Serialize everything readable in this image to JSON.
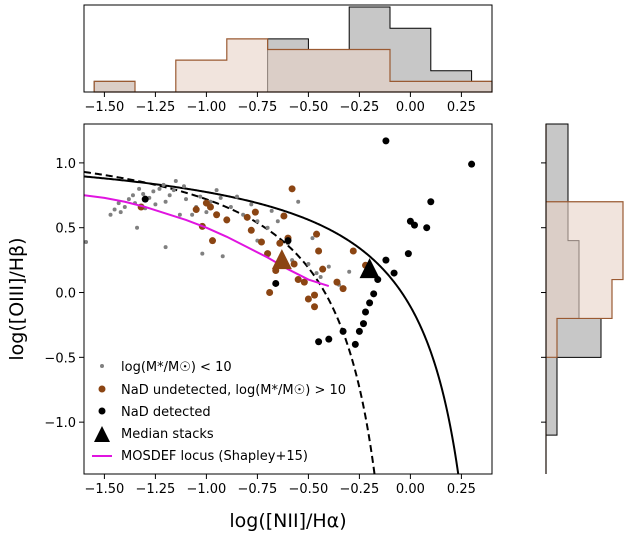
{
  "colors": {
    "low_mass": "#808080",
    "undetected": "#8B4513",
    "detected": "#000000",
    "median": "#000000",
    "median_brown": "#8B4513",
    "mosdef": "#E014E0",
    "hist_brown_fill": "#E8D2C6",
    "hist_brown_edge": "#9A5A32",
    "hist_gray_fill": "#BDBDBD",
    "hist_overlap_fill": "#B4A295"
  },
  "chart_data": [
    {
      "id": "main",
      "type": "scatter",
      "xlabel": "log([NII]/Hα)",
      "ylabel": "log([OIII]/Hβ)",
      "xlim": [
        -1.6,
        0.4
      ],
      "ylim": [
        -1.4,
        1.3
      ],
      "xticks": [
        -1.5,
        -1.25,
        -1.0,
        -0.75,
        -0.5,
        -0.25,
        0.0,
        0.25
      ],
      "xtick_labels": [
        "−1.50",
        "−1.25",
        "−1.00",
        "−0.75",
        "−0.50",
        "−0.25",
        "0.00",
        "0.25"
      ],
      "yticks": [
        -1.0,
        -0.5,
        0.0,
        0.5,
        1.0
      ],
      "ytick_labels": [
        "−1.0",
        "−0.5",
        "0.0",
        "0.5",
        "1.0"
      ],
      "legend_position": "lower-left",
      "series": [
        {
          "name": "log(M*/M☉) < 10",
          "marker": "small-dot",
          "points": [
            [
              -1.59,
              0.39
            ],
            [
              -1.47,
              0.6
            ],
            [
              -1.45,
              0.64
            ],
            [
              -1.43,
              0.69
            ],
            [
              -1.42,
              0.62
            ],
            [
              -1.4,
              0.66
            ],
            [
              -1.38,
              0.72
            ],
            [
              -1.36,
              0.75
            ],
            [
              -1.35,
              0.69
            ],
            [
              -1.33,
              0.8
            ],
            [
              -1.31,
              0.76
            ],
            [
              -1.3,
              0.65
            ],
            [
              -1.28,
              0.73
            ],
            [
              -1.26,
              0.78
            ],
            [
              -1.25,
              0.68
            ],
            [
              -1.23,
              0.8
            ],
            [
              -1.21,
              0.83
            ],
            [
              -1.2,
              0.7
            ],
            [
              -1.18,
              0.75
            ],
            [
              -1.16,
              0.79
            ],
            [
              -1.15,
              0.86
            ],
            [
              -1.13,
              0.6
            ],
            [
              -1.11,
              0.82
            ],
            [
              -1.1,
              0.72
            ],
            [
              -1.07,
              0.6
            ],
            [
              -1.05,
              0.66
            ],
            [
              -1.03,
              0.74
            ],
            [
              -1.0,
              0.62
            ],
            [
              -0.98,
              0.7
            ],
            [
              -0.95,
              0.79
            ],
            [
              -0.93,
              0.73
            ],
            [
              -0.9,
              0.55
            ],
            [
              -0.88,
              0.66
            ],
            [
              -0.85,
              0.74
            ],
            [
              -0.82,
              0.6
            ],
            [
              -0.78,
              0.68
            ],
            [
              -0.75,
              0.55
            ],
            [
              -0.7,
              0.5
            ],
            [
              -0.68,
              0.63
            ],
            [
              -0.6,
              0.38
            ],
            [
              -0.58,
              0.25
            ],
            [
              -0.55,
              0.7
            ],
            [
              -0.5,
              0.22
            ],
            [
              -0.46,
              0.15
            ],
            [
              -0.44,
              0.12
            ],
            [
              -0.4,
              0.2
            ],
            [
              -0.35,
              0.06
            ],
            [
              -1.02,
              0.3
            ],
            [
              -1.2,
              0.35
            ],
            [
              -0.92,
              0.28
            ],
            [
              -0.75,
              0.4
            ],
            [
              -0.65,
              0.55
            ],
            [
              -1.34,
              0.5
            ],
            [
              -0.48,
              0.42
            ],
            [
              -0.3,
              0.16
            ]
          ]
        },
        {
          "name": "NaD undetected, log(M*/M☉) > 10",
          "marker": "dot",
          "points": [
            [
              -1.32,
              0.66
            ],
            [
              -1.05,
              0.64
            ],
            [
              -1.02,
              0.51
            ],
            [
              -1.0,
              0.69
            ],
            [
              -0.98,
              0.66
            ],
            [
              -0.97,
              0.4
            ],
            [
              -0.95,
              0.6
            ],
            [
              -0.9,
              0.56
            ],
            [
              -0.8,
              0.58
            ],
            [
              -0.78,
              0.48
            ],
            [
              -0.76,
              0.62
            ],
            [
              -0.73,
              0.39
            ],
            [
              -0.7,
              0.3
            ],
            [
              -0.66,
              0.17
            ],
            [
              -0.64,
              0.38
            ],
            [
              -0.62,
              0.59
            ],
            [
              -0.6,
              0.42
            ],
            [
              -0.57,
              0.22
            ],
            [
              -0.55,
              0.1
            ],
            [
              -0.52,
              0.08
            ],
            [
              -0.5,
              -0.05
            ],
            [
              -0.47,
              -0.11
            ],
            [
              -0.45,
              0.32
            ],
            [
              -0.43,
              0.18
            ],
            [
              -0.36,
              0.08
            ],
            [
              -0.33,
              0.03
            ],
            [
              -0.28,
              0.32
            ],
            [
              -0.22,
              0.21
            ],
            [
              -0.58,
              0.8
            ],
            [
              -0.46,
              0.45
            ],
            [
              -0.69,
              0.0
            ],
            [
              -0.47,
              -0.02
            ]
          ]
        },
        {
          "name": "NaD detected",
          "marker": "dot",
          "points": [
            [
              -1.3,
              0.72
            ],
            [
              -0.45,
              -0.38
            ],
            [
              -0.4,
              -0.36
            ],
            [
              -0.33,
              -0.3
            ],
            [
              -0.27,
              -0.4
            ],
            [
              -0.25,
              -0.3
            ],
            [
              -0.23,
              -0.24
            ],
            [
              -0.22,
              -0.15
            ],
            [
              -0.2,
              -0.08
            ],
            [
              -0.18,
              -0.01
            ],
            [
              -0.16,
              0.1
            ],
            [
              -0.12,
              0.25
            ],
            [
              -0.08,
              0.15
            ],
            [
              -0.01,
              0.3
            ],
            [
              0.0,
              0.55
            ],
            [
              0.02,
              0.52
            ],
            [
              0.08,
              0.5
            ],
            [
              0.1,
              0.7
            ],
            [
              -0.12,
              1.17
            ],
            [
              0.3,
              0.99
            ],
            [
              -0.6,
              0.4
            ],
            [
              -0.66,
              0.07
            ]
          ]
        },
        {
          "name": "Median stacks",
          "marker": "triangle",
          "points": [
            [
              -0.63,
              0.25,
              "brown"
            ],
            [
              -0.2,
              0.18,
              "black"
            ]
          ]
        },
        {
          "name": "MOSDEF locus (Shapley+15)",
          "marker": "line",
          "points": [
            [
              -1.6,
              0.75
            ],
            [
              -1.5,
              0.73
            ],
            [
              -1.4,
              0.7
            ],
            [
              -1.3,
              0.66
            ],
            [
              -1.2,
              0.61
            ],
            [
              -1.1,
              0.56
            ],
            [
              -1.0,
              0.5
            ],
            [
              -0.9,
              0.43
            ],
            [
              -0.8,
              0.35
            ],
            [
              -0.7,
              0.27
            ],
            [
              -0.6,
              0.18
            ],
            [
              -0.5,
              0.1
            ],
            [
              -0.4,
              0.05
            ]
          ]
        }
      ],
      "curves": [
        {
          "name": "kewley",
          "style": "solid",
          "asymptote": 0.47,
          "coef": 0.61,
          "offset": 1.19
        },
        {
          "name": "kauffmann",
          "style": "dashed",
          "asymptote": 0.05,
          "coef": 0.61,
          "offset": 1.3
        }
      ]
    },
    {
      "id": "top_hist",
      "type": "bar",
      "xlim": [
        -1.6,
        0.4
      ],
      "xticks": [
        -1.5,
        -1.25,
        -1.0,
        -0.75,
        -0.5,
        -0.25,
        0.0,
        0.25
      ],
      "xtick_labels": [
        "−1.50",
        "−1.25",
        "−1.00",
        "−0.75",
        "−0.50",
        "−0.25",
        "0.00",
        "0.25"
      ],
      "ylim": [
        0,
        8
      ],
      "bin_edges": [
        -1.55,
        -1.35,
        -1.15,
        -0.9,
        -0.7,
        -0.5,
        -0.3,
        -0.1,
        0.1,
        0.3,
        0.4
      ],
      "series": [
        {
          "name": "undetected",
          "values": [
            1,
            0,
            3,
            5,
            4,
            4,
            4,
            1,
            1,
            1
          ]
        },
        {
          "name": "detected",
          "values": [
            1,
            0,
            0,
            0,
            5,
            4,
            8,
            6,
            2,
            1
          ]
        }
      ]
    },
    {
      "id": "right_hist",
      "type": "bar",
      "orientation": "horizontal",
      "ylim": [
        -1.4,
        1.3
      ],
      "xlim": [
        0,
        8
      ],
      "bin_edges": [
        -1.4,
        -1.1,
        -0.8,
        -0.5,
        -0.2,
        0.1,
        0.4,
        0.7,
        1.0,
        1.3
      ],
      "series": [
        {
          "name": "undetected",
          "values": [
            0,
            0,
            0,
            1,
            6,
            7,
            7,
            0,
            0
          ]
        },
        {
          "name": "detected",
          "values": [
            0,
            1,
            1,
            5,
            3,
            3,
            2,
            2,
            2
          ]
        }
      ]
    }
  ]
}
